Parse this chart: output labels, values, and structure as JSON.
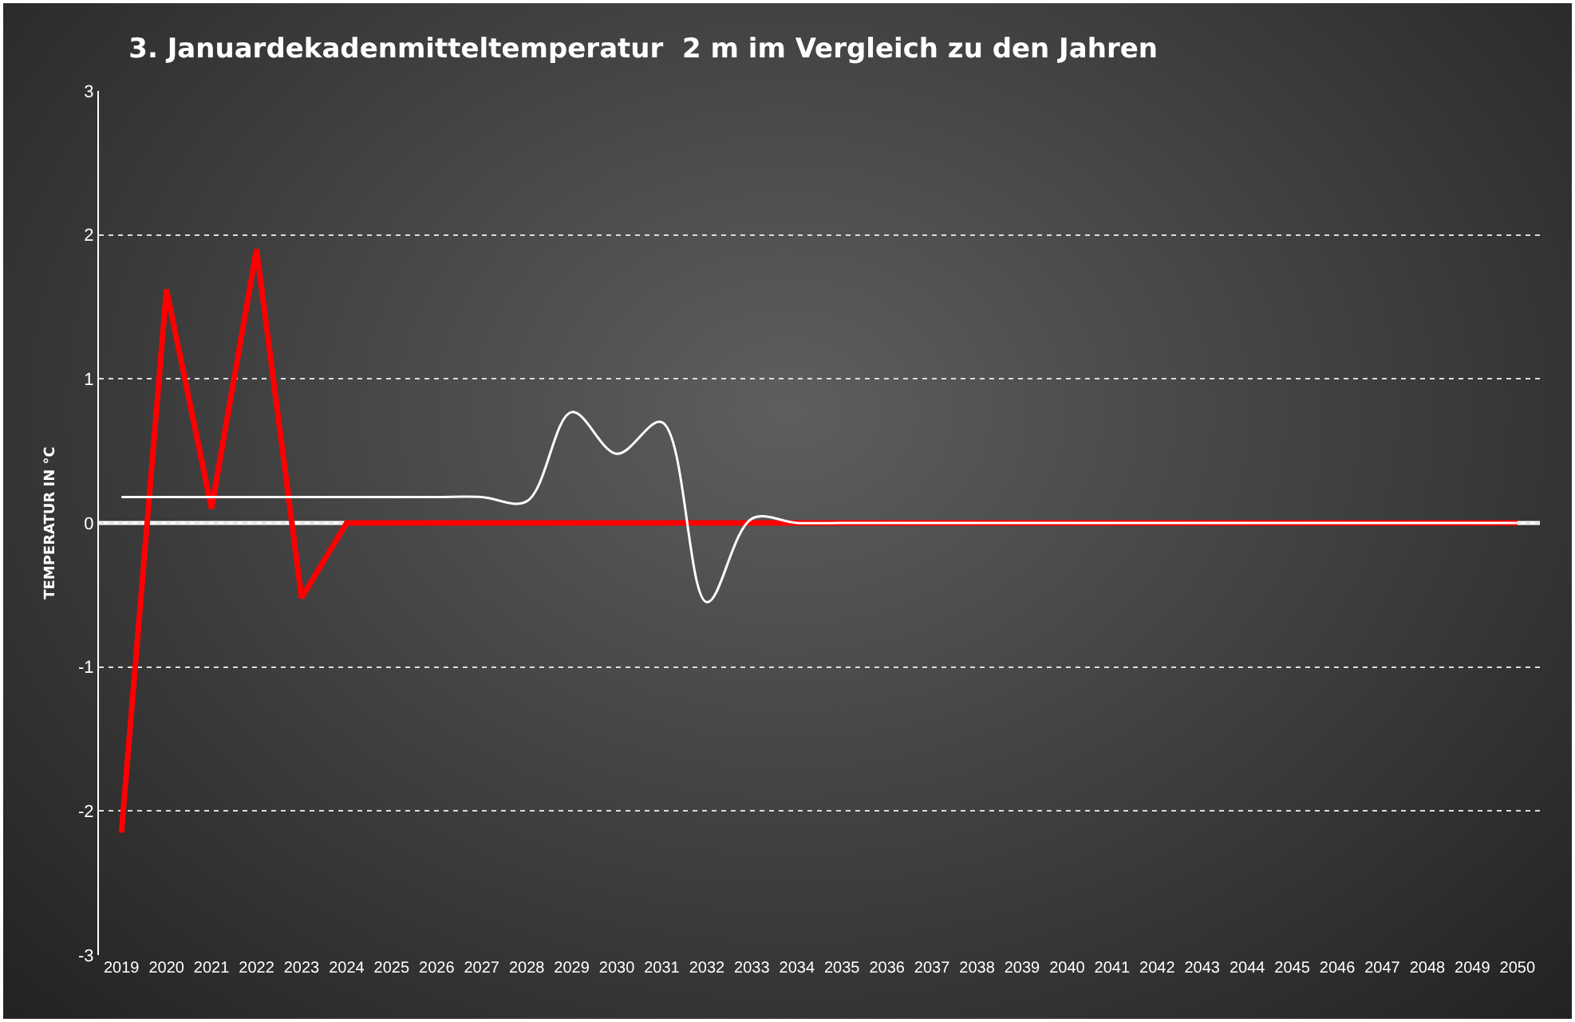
{
  "chart_data": {
    "type": "line",
    "title": "3. Januardekadenmitteltemperatur  2 m im Vergleich zu den Jahren",
    "ylabel": "TEMPERATUR IN °C",
    "categories": [
      "2019",
      "2020",
      "2021",
      "2022",
      "2023",
      "2024",
      "2025",
      "2026",
      "2027",
      "2028",
      "2029",
      "2030",
      "2031",
      "2032",
      "2033",
      "2034",
      "2035",
      "2036",
      "2037",
      "2038",
      "2039",
      "2040",
      "2041",
      "2042",
      "2043",
      "2044",
      "2045",
      "2046",
      "2047",
      "2048",
      "2049",
      "2050"
    ],
    "series": [
      {
        "color": "#ff0000",
        "values": [
          -2.15,
          1.62,
          0.1,
          1.9,
          -0.52,
          0,
          0,
          0,
          0,
          0,
          0,
          0,
          0,
          0,
          0,
          0,
          0,
          0,
          0,
          0,
          0,
          0,
          0,
          0,
          0,
          0,
          0,
          0,
          0,
          0,
          0,
          0
        ]
      },
      {
        "color": "#ffffff",
        "values": [
          0.18,
          0.18,
          0.18,
          0.18,
          0.18,
          0.18,
          0.18,
          0.18,
          0.18,
          0.15,
          0.77,
          0.48,
          0.7,
          -0.55,
          0.03,
          0,
          0,
          0,
          0,
          0,
          0,
          0,
          0,
          0,
          0,
          0,
          0,
          0,
          0,
          0,
          0,
          0
        ]
      }
    ],
    "ylim": [
      -3,
      3
    ],
    "yticks": [
      -3,
      -2,
      -1,
      0,
      1,
      2,
      3
    ],
    "grid": "y",
    "ref_lines": [
      {
        "axis": "y",
        "value": 0,
        "color": "#ffffff"
      }
    ]
  }
}
